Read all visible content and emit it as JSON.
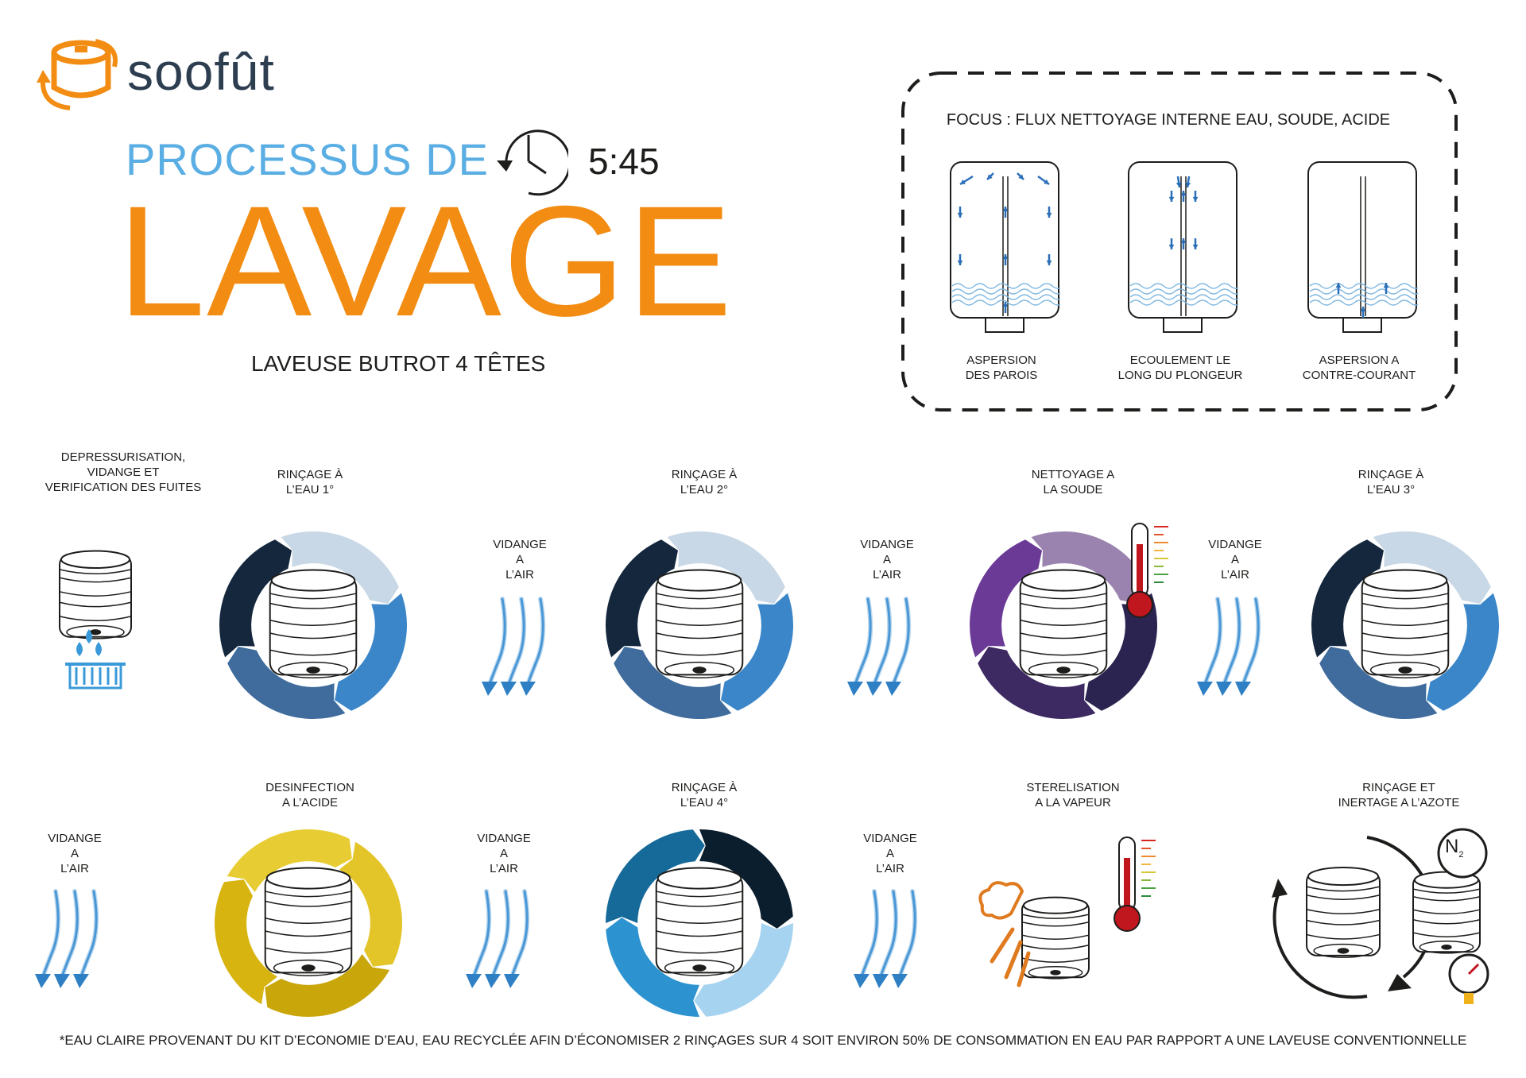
{
  "brand": {
    "name": "soofût",
    "logo_icon": "keg-logo-icon"
  },
  "header": {
    "title_line1": "PROCESSUS DE",
    "title_line2": "LAVAGE",
    "subtitle": "LAVEUSE BUTROT 4 TÊTES",
    "duration": "5:45",
    "clock_icon": "clock-icon"
  },
  "focus": {
    "title": "FOCUS : FLUX NETTOYAGE INTERNE EAU, SOUDE, ACIDE",
    "items": [
      {
        "label": "ASPERSION\nDES PAROIS"
      },
      {
        "label": "ECOULEMENT LE\nLONG DU PLONGEUR"
      },
      {
        "label": "ASPERSION A\nCONTRE-COURANT"
      }
    ]
  },
  "steps": {
    "depressurisation": "DEPRESSURISATION,\nVIDANGE ET\nVERIFICATION DES FUITES",
    "rinse1": "RINÇAGE À\nL’EAU 1°",
    "rinse2": "RINÇAGE À\nL’EAU 2°",
    "soude": "NETTOYAGE A\nLA SOUDE",
    "rinse3": "RINÇAGE À\nL’EAU 3°",
    "acide": "DESINFECTION\nA L’ACIDE",
    "rinse4": "RINÇAGE À\nL’EAU 4°",
    "vapeur": "STERELISATION\nA LA VAPEUR",
    "azote": "RINÇAGE ET\nINERTAGE A L’AZOTE"
  },
  "drain_label": "VIDANGE\nA\nL’AIR",
  "n2_label": "N",
  "n2_sub": "2",
  "footnote": "*EAU CLAIRE PROVENANT DU KIT D’ECONOMIE D’EAU, EAU RECYCLÉE AFIN D’ÉCONOMISER 2 RINÇAGES SUR 4 SOIT ENVIRON 50% DE CONSOMMATION EN EAU PAR RAPPORT A UNE LAVEUSE CONVENTIONNELLE",
  "colors": {
    "orange": "#f28c12",
    "light_blue": "#5aaee3",
    "navy": "#14273d",
    "rinse": [
      "#c9d8e6",
      "#3a86c8",
      "#3f6c9c",
      "#14273d"
    ],
    "soude": [
      "#9a83ae",
      "#2b2450",
      "#3e2a63",
      "#6b3a96"
    ],
    "acide": [
      "#e3c52a",
      "#c9a60a",
      "#d7b40f",
      "#e7cd33"
    ],
    "rinse4": [
      "#0b1e2e",
      "#a6d3ef",
      "#2c93d0",
      "#166a99"
    ]
  }
}
